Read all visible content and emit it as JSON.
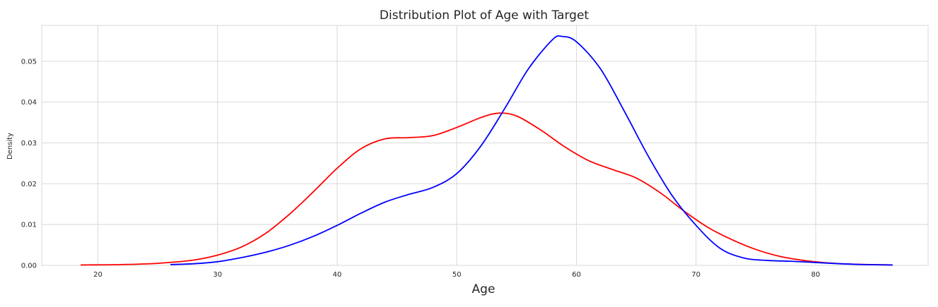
{
  "chart_data": {
    "type": "line",
    "title": "Distribution Plot of Age with Target",
    "xlabel": "Age",
    "ylabel": "Density",
    "xlim": [
      15.3,
      89.4
    ],
    "ylim": [
      0,
      0.0588
    ],
    "xticks": [
      20,
      30,
      40,
      50,
      60,
      70,
      80
    ],
    "yticks": [
      0.0,
      0.01,
      0.02,
      0.03,
      0.04,
      0.05
    ],
    "ytick_labels": [
      "0.00",
      "0.01",
      "0.02",
      "0.03",
      "0.04",
      "0.05"
    ],
    "grid": true,
    "series": [
      {
        "color": "#ff0000",
        "x": [
          18.6,
          22,
          25,
          28,
          30,
          32,
          34,
          36,
          38,
          40,
          42,
          44,
          46,
          48,
          50,
          52,
          53.5,
          55,
          57,
          59,
          61,
          63,
          65,
          67,
          69,
          71,
          73,
          75,
          77,
          79,
          81,
          83,
          86.4
        ],
        "y": [
          0.0001,
          0.0002,
          0.0005,
          0.0013,
          0.0025,
          0.0045,
          0.0078,
          0.0125,
          0.018,
          0.0238,
          0.0286,
          0.031,
          0.0313,
          0.0318,
          0.0338,
          0.0362,
          0.0373,
          0.0366,
          0.0332,
          0.0291,
          0.0257,
          0.0235,
          0.0214,
          0.0178,
          0.0133,
          0.0093,
          0.0063,
          0.0039,
          0.0022,
          0.0012,
          0.0006,
          0.0003,
          0.0001
        ]
      },
      {
        "color": "#0000ff",
        "x": [
          26.1,
          28,
          30,
          32,
          34,
          36,
          38,
          40,
          42,
          44,
          46,
          48,
          50,
          52,
          54,
          56,
          58,
          58.8,
          60,
          62,
          64,
          66,
          68,
          70,
          72,
          74,
          76,
          78,
          80,
          82,
          84,
          86.4
        ],
        "y": [
          0.0002,
          0.0004,
          0.0009,
          0.0019,
          0.0032,
          0.0049,
          0.0071,
          0.0098,
          0.0128,
          0.0155,
          0.0174,
          0.0191,
          0.0225,
          0.0292,
          0.0384,
          0.0482,
          0.0553,
          0.0561,
          0.0548,
          0.0482,
          0.0378,
          0.0268,
          0.0171,
          0.0098,
          0.0042,
          0.0018,
          0.0012,
          0.001,
          0.0007,
          0.0004,
          0.0002,
          0.0001
        ]
      }
    ]
  }
}
